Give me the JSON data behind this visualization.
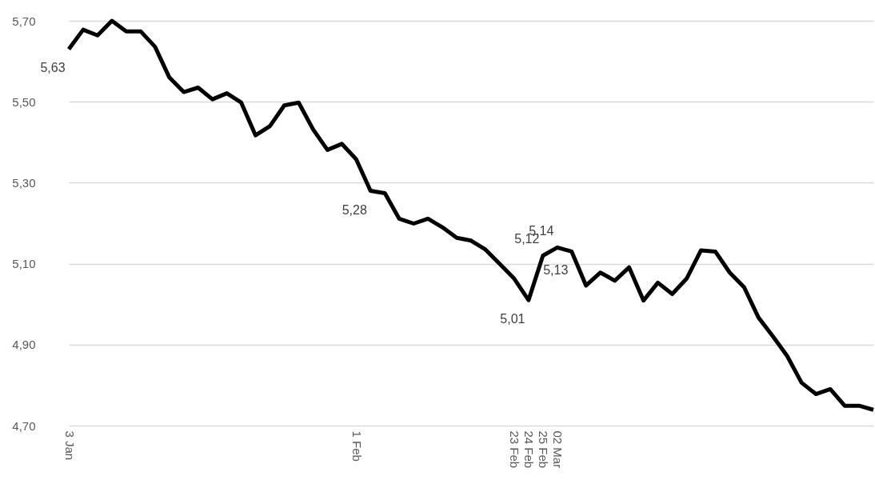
{
  "chart_data": {
    "type": "line",
    "categories": [
      "3 Jan",
      null,
      null,
      null,
      null,
      null,
      null,
      null,
      null,
      null,
      null,
      null,
      null,
      null,
      null,
      null,
      null,
      null,
      null,
      null,
      "1 Feb",
      null,
      null,
      null,
      null,
      null,
      null,
      null,
      null,
      null,
      null,
      "23 Feb",
      "24 Feb",
      "25 Feb",
      "02 Mar",
      null,
      null,
      null,
      null,
      null,
      null,
      null,
      null,
      null,
      null,
      null,
      null,
      null,
      null,
      null,
      null,
      null,
      null,
      null,
      null,
      null,
      null
    ],
    "series": [
      {
        "color": "#000000",
        "values": [
          5.63,
          5.678,
          5.664,
          5.7,
          5.674,
          5.674,
          5.636,
          5.56,
          5.524,
          5.535,
          5.506,
          5.521,
          5.498,
          5.417,
          5.44,
          5.491,
          5.498,
          5.432,
          5.381,
          5.396,
          5.358,
          5.28,
          5.274,
          5.211,
          5.199,
          5.211,
          5.19,
          5.164,
          5.157,
          5.135,
          5.099,
          5.063,
          5.01,
          5.12,
          5.14,
          5.13,
          5.046,
          5.078,
          5.058,
          5.091,
          5.009,
          5.053,
          5.025,
          5.063,
          5.133,
          5.13,
          5.078,
          5.042,
          4.967,
          4.921,
          4.872,
          4.806,
          4.778,
          4.79,
          4.749,
          4.749,
          4.739
        ],
        "value_labels": [
          "5,63",
          null,
          null,
          null,
          null,
          null,
          null,
          null,
          null,
          null,
          null,
          null,
          null,
          null,
          null,
          null,
          null,
          null,
          null,
          null,
          null,
          "5,28",
          null,
          null,
          null,
          null,
          null,
          null,
          null,
          null,
          null,
          null,
          "5,01",
          "5,12",
          "5,14",
          "5,13",
          null,
          null,
          null,
          null,
          null,
          null,
          null,
          null,
          null,
          null,
          null,
          null,
          null,
          null,
          null,
          null,
          null,
          null,
          null,
          null,
          null
        ]
      }
    ],
    "ylim": [
      4.7,
      5.7
    ],
    "yticks": [
      {
        "value": 4.7,
        "label": "4,70"
      },
      {
        "value": 4.9,
        "label": "4,90"
      },
      {
        "value": 5.1,
        "label": "5,10"
      },
      {
        "value": 5.3,
        "label": "5,30"
      },
      {
        "value": 5.5,
        "label": "5,50"
      },
      {
        "value": 5.7,
        "label": "5,70"
      }
    ],
    "grid": "y"
  }
}
